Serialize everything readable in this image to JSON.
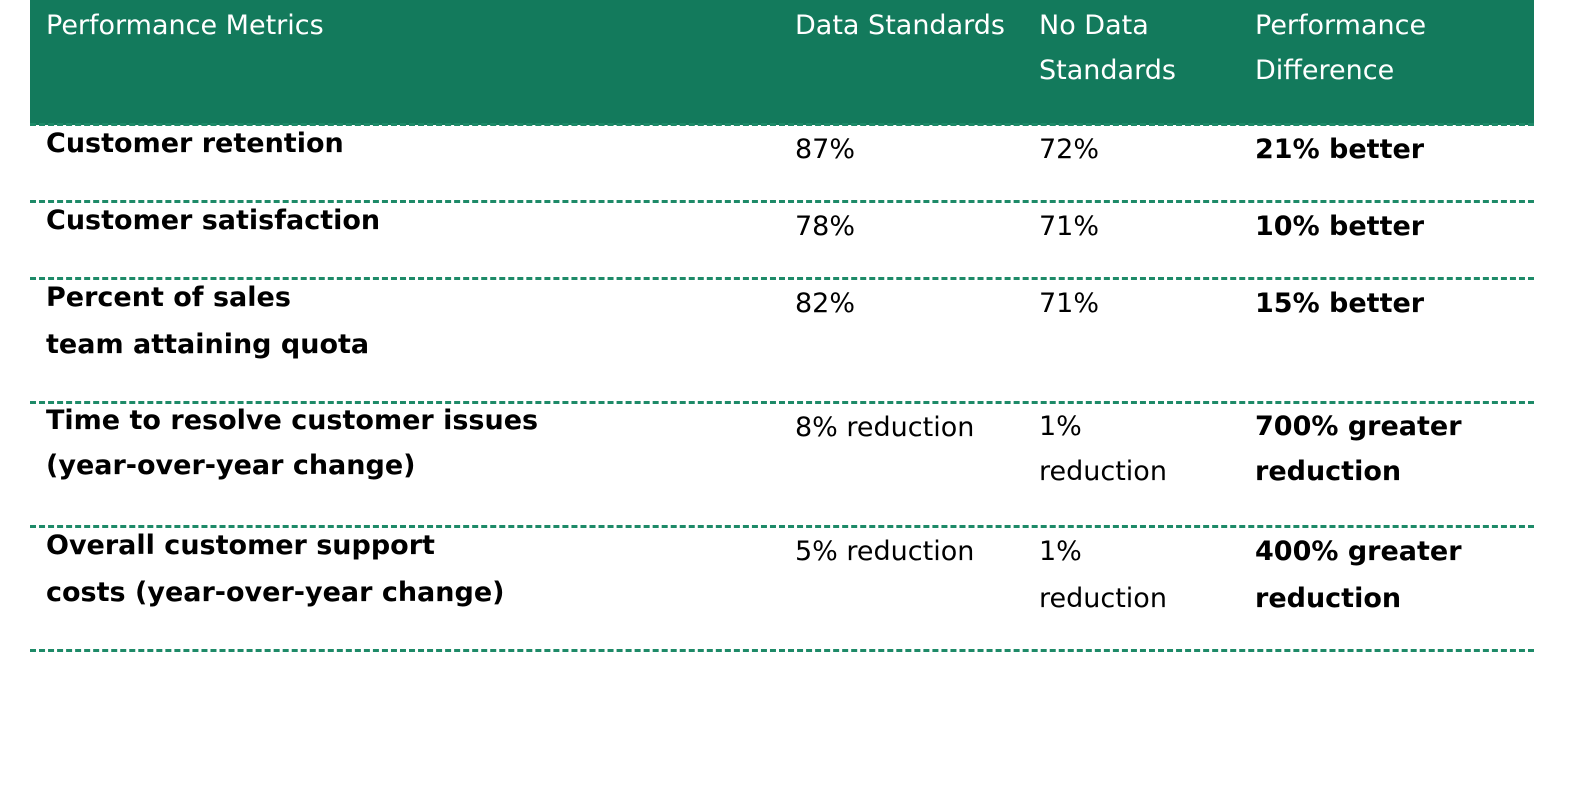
{
  "table": {
    "headers": {
      "metric": "Performance Metrics",
      "data_standards": "Data Standards",
      "no_data_standards": "No Data Standards",
      "performance_difference": "Performance Difference"
    },
    "rows": [
      {
        "metric": "Customer retention",
        "data_standards": "87%",
        "no_data_standards": "72%",
        "difference": "21% better"
      },
      {
        "metric": "Customer satisfaction",
        "data_standards": "78%",
        "no_data_standards": "71%",
        "difference": "10% better"
      },
      {
        "metric": "Percent of sales team attaining quota",
        "data_standards": "82%",
        "no_data_standards": "71%",
        "difference": "15% better"
      },
      {
        "metric": "Time to resolve customer issues (year-over-year change)",
        "data_standards": "8% reduction",
        "no_data_standards": "1% reduction",
        "difference": "700% greater reduction"
      },
      {
        "metric": "Overall customer support costs (year-over-year change)",
        "data_standards": "5% reduction",
        "no_data_standards": "1% reduction",
        "difference": "400% greater reduction"
      }
    ]
  },
  "colors": {
    "header_background": "#137a5c",
    "header_text": "#ffffff",
    "row_divider": "#1e8a68"
  }
}
